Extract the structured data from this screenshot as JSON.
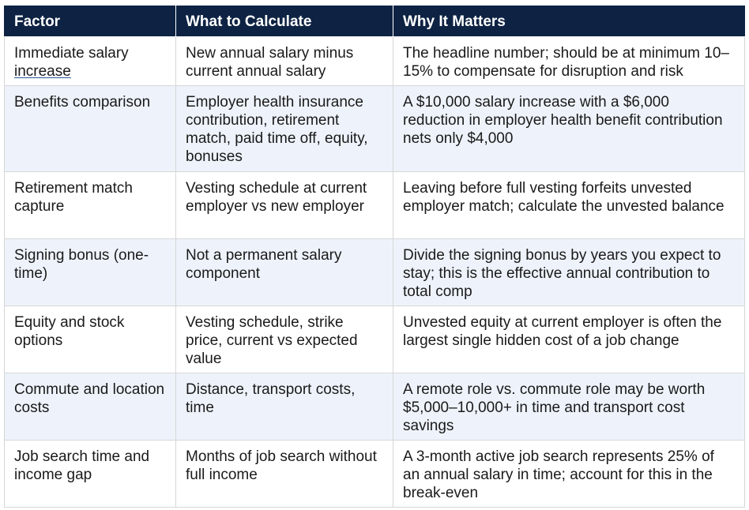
{
  "table": {
    "headers": [
      "Factor",
      "What to Calculate",
      "Why It Matters"
    ],
    "rows": [
      {
        "factor_pre": "Immediate salary ",
        "factor_underlined": "increase",
        "calc": "New annual salary minus current annual salary",
        "why": "The headline number; should be at minimum 10–15% to compensate for disruption and risk"
      },
      {
        "factor": "Benefits comparison",
        "calc": "Employer health insurance contribution, retirement match, paid time off, equity, bonuses",
        "why": "A $10,000 salary increase with a $6,000 reduction in employer health benefit contribution nets only $4,000"
      },
      {
        "factor": "Retirement match capture",
        "calc": "Vesting schedule at current employer vs new employer",
        "why": "Leaving before full vesting forfeits unvested employer match; calculate the unvested balance"
      },
      {
        "factor": "Signing bonus (one-time)",
        "calc": "Not a permanent salary component",
        "why": "Divide the signing bonus by years you expect to stay; this is the effective annual contribution to total comp"
      },
      {
        "factor": "Equity and stock options",
        "calc": "Vesting schedule, strike price, current vs expected value",
        "why": "Unvested equity at current employer is often the largest single hidden cost of a job change"
      },
      {
        "factor": "Commute and location costs",
        "calc": "Distance, transport costs, time",
        "why": "A remote role vs. commute role may be worth $5,000–10,000+ in time and transport cost savings"
      },
      {
        "factor": "Job search time and income gap",
        "calc": "Months of job search without full income",
        "why": "A 3-month active job search represents 25% of an annual salary in time; account for this in the break-even"
      }
    ]
  },
  "colors": {
    "header_bg": "#0e2343",
    "alt_row_bg": "#eef3fb",
    "border": "#d6d6d6"
  }
}
